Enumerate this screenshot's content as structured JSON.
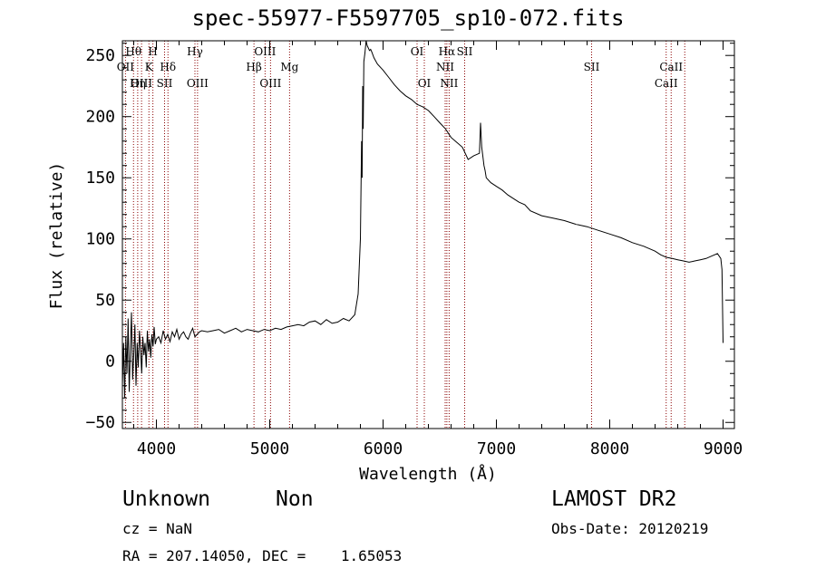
{
  "title": "spec-55977-F5597705_sp10-072.fits",
  "info": {
    "classification": "Unknown",
    "subclass": "Non",
    "survey": "LAMOST DR2",
    "cz": "cz = NaN",
    "obs_date": "Obs-Date: 20120219",
    "radec": "RA = 207.14050, DEC =    1.65053"
  },
  "chart_data": {
    "type": "line",
    "title": "spec-55977-F5597705_sp10-072.fits",
    "xlabel": "Wavelength (Å)",
    "ylabel": "Flux (relative)",
    "xlim": [
      3700,
      9100
    ],
    "ylim": [
      -55,
      262
    ],
    "xticks": [
      4000,
      5000,
      6000,
      7000,
      8000,
      9000
    ],
    "yticks": [
      -50,
      0,
      50,
      100,
      150,
      200,
      250
    ],
    "line_color": "#000000",
    "marker_color": "#8b0000",
    "emission_lines": [
      {
        "label": "Hθ",
        "x": 3798,
        "row": 0
      },
      {
        "label": "OII",
        "x": 3727,
        "row": 1
      },
      {
        "label": "OIII",
        "x": 3869,
        "row": 2
      },
      {
        "label": "H",
        "x": 3969,
        "row": 0
      },
      {
        "label": "K",
        "x": 3934,
        "row": 1
      },
      {
        "label": "Hη",
        "x": 3835,
        "row": 2
      },
      {
        "label": "Hδ",
        "x": 4102,
        "row": 1
      },
      {
        "label": "SII",
        "x": 4072,
        "row": 2
      },
      {
        "label": "Hγ",
        "x": 4340,
        "row": 0
      },
      {
        "label": "OIII",
        "x": 4363,
        "row": 2
      },
      {
        "label": "OIII",
        "x": 4959,
        "row": 0
      },
      {
        "label": "Hβ",
        "x": 4861,
        "row": 1
      },
      {
        "label": "OIII",
        "x": 5007,
        "row": 2
      },
      {
        "label": "Mg",
        "x": 5175,
        "row": 1
      },
      {
        "label": "OI",
        "x": 6300,
        "row": 0
      },
      {
        "label": "OI",
        "x": 6364,
        "row": 2
      },
      {
        "label": "Hα",
        "x": 6563,
        "row": 0
      },
      {
        "label": "NII",
        "x": 6548,
        "row": 1
      },
      {
        "label": "NII",
        "x": 6583,
        "row": 2
      },
      {
        "label": "SII",
        "x": 6720,
        "row": 0
      },
      {
        "label": "SII",
        "x": 7840,
        "row": 1
      },
      {
        "label": "CaII",
        "x": 8542,
        "row": 1
      },
      {
        "label": "CaII",
        "x": 8498,
        "row": 2
      }
    ],
    "extra_marker_lines": [
      8662
    ],
    "series": [
      {
        "x": [
          3700,
          3710,
          3720,
          3730,
          3740,
          3750,
          3760,
          3770,
          3780,
          3790,
          3800,
          3810,
          3820,
          3830,
          3840,
          3850,
          3860,
          3870,
          3880,
          3890,
          3900,
          3910,
          3920,
          3930,
          3940,
          3950,
          3960,
          3970,
          3980,
          3990,
          4000,
          4020,
          4040,
          4060,
          4080,
          4100,
          4120,
          4140,
          4160,
          4180,
          4200,
          4220,
          4240,
          4260,
          4280,
          4300,
          4320,
          4340,
          4360,
          4380,
          4400,
          4450,
          4500,
          4550,
          4600,
          4650,
          4700,
          4750,
          4800,
          4850,
          4900,
          4950,
          5000,
          5050,
          5100,
          5150,
          5200,
          5250,
          5300,
          5350,
          5400,
          5450,
          5500,
          5550,
          5600,
          5650,
          5700,
          5750,
          5780,
          5800,
          5810,
          5815,
          5820,
          5825,
          5830,
          5840,
          5850,
          5860,
          5870,
          5880,
          5890,
          5900,
          5920,
          5950,
          6000,
          6050,
          6100,
          6150,
          6200,
          6250,
          6300,
          6350,
          6400,
          6450,
          6500,
          6550,
          6600,
          6650,
          6700,
          6750,
          6800,
          6850,
          6860,
          6870,
          6880,
          6890,
          6900,
          6910,
          6950,
          7000,
          7050,
          7100,
          7150,
          7200,
          7250,
          7300,
          7400,
          7500,
          7600,
          7700,
          7800,
          7900,
          8000,
          8100,
          8200,
          8300,
          8400,
          8450,
          8500,
          8550,
          8600,
          8650,
          8700,
          8750,
          8800,
          8850,
          8900,
          8950,
          8980,
          8990,
          9000
        ],
        "y": [
          -20,
          15,
          -30,
          20,
          -10,
          35,
          -25,
          10,
          40,
          -15,
          5,
          30,
          -20,
          15,
          -5,
          25,
          10,
          -10,
          20,
          5,
          15,
          -5,
          25,
          8,
          18,
          3,
          22,
          12,
          28,
          14,
          18,
          20,
          15,
          25,
          18,
          22,
          16,
          24,
          20,
          26,
          18,
          22,
          24,
          20,
          18,
          23,
          27,
          20,
          22,
          24,
          25,
          24,
          25,
          26,
          23,
          25,
          27,
          24,
          26,
          25,
          24,
          26,
          25,
          27,
          26,
          28,
          29,
          30,
          29,
          32,
          33,
          30,
          34,
          31,
          32,
          35,
          33,
          38,
          55,
          100,
          180,
          150,
          225,
          190,
          245,
          252,
          262,
          258,
          256,
          254,
          255,
          253,
          248,
          243,
          238,
          232,
          226,
          221,
          217,
          214,
          210,
          208,
          205,
          200,
          195,
          190,
          183,
          179,
          175,
          165,
          168,
          170,
          195,
          175,
          168,
          160,
          156,
          150,
          146,
          143,
          140,
          136,
          133,
          130,
          128,
          123,
          119,
          117,
          115,
          112,
          110,
          107,
          104,
          101,
          97,
          94,
          90,
          87,
          85,
          84,
          83,
          82,
          81,
          82,
          83,
          84,
          86,
          88,
          84,
          75,
          15
        ]
      }
    ]
  }
}
